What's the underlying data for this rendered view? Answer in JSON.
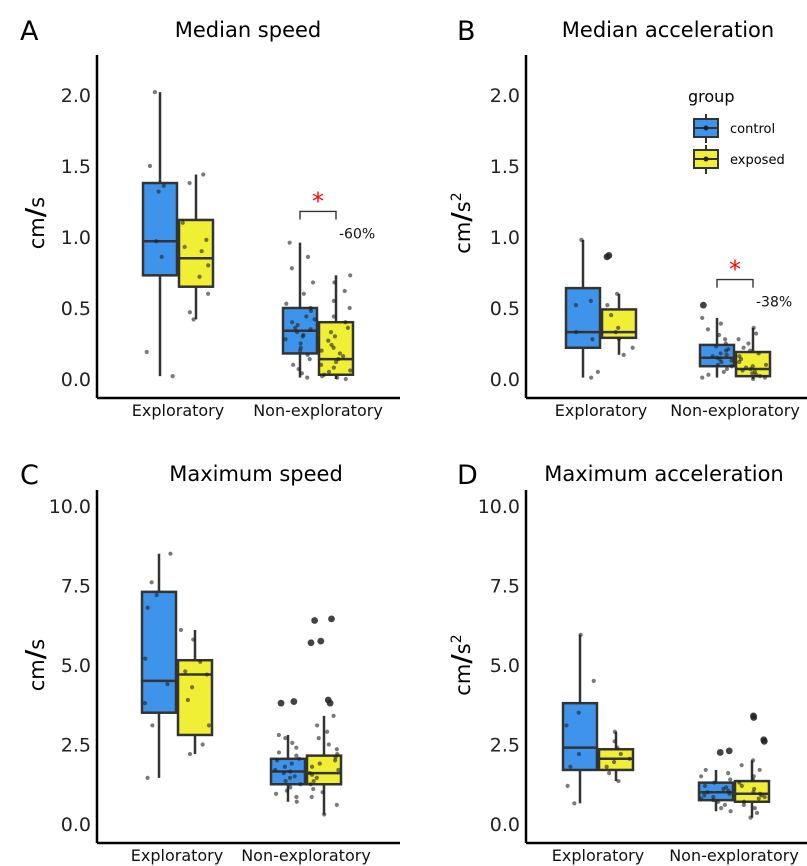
{
  "colors": {
    "control": "#3d94ea",
    "exposed": "#f0ee35",
    "outline": "#333333",
    "star": "#ff0000"
  },
  "legend": {
    "title": "group",
    "items": [
      {
        "name": "control",
        "color": "#3d94ea"
      },
      {
        "name": "exposed",
        "color": "#f0ee35"
      }
    ]
  },
  "chart_data": [
    {
      "type": "box",
      "panel": "A",
      "title": "Median speed",
      "unit": {
        "base": "cm",
        "den": "s",
        "exp": ""
      },
      "ylim": [
        0,
        2.25
      ],
      "yticks": [
        "0.0",
        "0.5",
        "1.0",
        "1.5",
        "2.0"
      ],
      "categories": [
        "Exploratory",
        "Non-exploratory"
      ],
      "series": [
        {
          "name": "control",
          "boxes": [
            {
              "min": 0.02,
              "q1": 0.73,
              "median": 0.97,
              "q3": 1.38,
              "max": 2.02,
              "points": [
                0.02,
                0.19,
                0.86,
                0.97,
                1.32,
                1.36,
                1.5,
                2.02
              ]
            },
            {
              "min": 0.01,
              "q1": 0.18,
              "median": 0.34,
              "q3": 0.5,
              "max": 0.96,
              "points": [
                0.01,
                0.04,
                0.07,
                0.1,
                0.14,
                0.17,
                0.2,
                0.22,
                0.25,
                0.28,
                0.3,
                0.31,
                0.33,
                0.35,
                0.36,
                0.38,
                0.4,
                0.42,
                0.44,
                0.48,
                0.5,
                0.53,
                0.6,
                0.68,
                0.78,
                0.86,
                0.96
              ]
            }
          ]
        },
        {
          "name": "exposed",
          "boxes": [
            {
              "min": 0.42,
              "q1": 0.65,
              "median": 0.85,
              "q3": 1.12,
              "max": 1.44,
              "points": [
                0.42,
                0.47,
                0.6,
                0.72,
                0.8,
                0.9,
                0.93,
                0.98,
                1.1,
                1.38,
                1.44
              ]
            },
            {
              "min": 0.0,
              "q1": 0.03,
              "median": 0.14,
              "q3": 0.4,
              "max": 0.73,
              "points": [
                0.0,
                0.01,
                0.02,
                0.03,
                0.05,
                0.06,
                0.08,
                0.1,
                0.12,
                0.14,
                0.16,
                0.18,
                0.2,
                0.22,
                0.24,
                0.27,
                0.3,
                0.33,
                0.36,
                0.4,
                0.44,
                0.5,
                0.55,
                0.62,
                0.68,
                0.73
              ]
            }
          ]
        }
      ],
      "annotation": {
        "star": "*",
        "percent": "-60%",
        "bracket_y": 1.18
      }
    },
    {
      "type": "box",
      "panel": "B",
      "title": "Median acceleration",
      "unit": {
        "base": "cm",
        "den": "s",
        "exp": "2"
      },
      "ylim": [
        0,
        2.25
      ],
      "yticks": [
        "0.0",
        "0.5",
        "1.0",
        "1.5",
        "2.0"
      ],
      "categories": [
        "Exploratory",
        "Non-exploratory"
      ],
      "series": [
        {
          "name": "control",
          "boxes": [
            {
              "min": 0.01,
              "q1": 0.22,
              "median": 0.33,
              "q3": 0.64,
              "max": 0.98,
              "points": [
                0.01,
                0.05,
                0.28,
                0.33,
                0.52,
                0.55,
                0.98
              ]
            },
            {
              "min": 0.01,
              "q1": 0.09,
              "median": 0.15,
              "q3": 0.24,
              "max": 0.43,
              "points": [
                0.01,
                0.03,
                0.05,
                0.07,
                0.09,
                0.1,
                0.12,
                0.13,
                0.14,
                0.15,
                0.16,
                0.17,
                0.18,
                0.2,
                0.21,
                0.23,
                0.25,
                0.28,
                0.31,
                0.35,
                0.39,
                0.43,
                0.52
              ]
            }
          ]
        },
        {
          "name": "exposed",
          "boxes": [
            {
              "min": 0.17,
              "q1": 0.29,
              "median": 0.33,
              "q3": 0.49,
              "max": 0.6,
              "points": [
                0.17,
                0.22,
                0.28,
                0.33,
                0.36,
                0.45,
                0.52,
                0.6,
                0.86,
                0.87
              ]
            },
            {
              "min": 0.0,
              "q1": 0.02,
              "median": 0.07,
              "q3": 0.19,
              "max": 0.36,
              "points": [
                0.0,
                0.01,
                0.02,
                0.03,
                0.04,
                0.05,
                0.06,
                0.07,
                0.08,
                0.09,
                0.1,
                0.12,
                0.14,
                0.16,
                0.18,
                0.2,
                0.22,
                0.25,
                0.28,
                0.32,
                0.36
              ]
            }
          ]
        }
      ],
      "annotation": {
        "star": "*",
        "percent": "-38%",
        "bracket_y": 0.7
      }
    },
    {
      "type": "box",
      "panel": "C",
      "title": "Maximum speed",
      "unit": {
        "base": "cm",
        "den": "s",
        "exp": ""
      },
      "ylim": [
        0,
        10.5
      ],
      "yticks": [
        "0.0",
        "2.5",
        "5.0",
        "7.5",
        "10.0"
      ],
      "categories": [
        "Exploratory",
        "Non-exploratory"
      ],
      "series": [
        {
          "name": "control",
          "boxes": [
            {
              "min": 1.45,
              "q1": 3.5,
              "median": 4.5,
              "q3": 7.3,
              "max": 8.5,
              "points": [
                1.45,
                3.1,
                3.8,
                4.4,
                5.2,
                6.8,
                7.2,
                7.6,
                8.5
              ]
            },
            {
              "min": 0.7,
              "q1": 1.25,
              "median": 1.65,
              "q3": 2.05,
              "max": 2.8,
              "points": [
                0.7,
                0.85,
                0.95,
                1.05,
                1.15,
                1.25,
                1.35,
                1.45,
                1.5,
                1.6,
                1.65,
                1.7,
                1.8,
                1.9,
                2.0,
                2.05,
                2.15,
                2.25,
                2.4,
                2.55,
                2.7,
                2.8,
                3.8,
                3.85
              ]
            }
          ]
        },
        {
          "name": "exposed",
          "boxes": [
            {
              "min": 2.2,
              "q1": 2.8,
              "median": 4.7,
              "q3": 5.15,
              "max": 6.1,
              "points": [
                2.2,
                2.5,
                3.1,
                3.9,
                4.3,
                4.7,
                4.8,
                5.1,
                5.8,
                6.1
              ]
            },
            {
              "min": 0.3,
              "q1": 1.25,
              "median": 1.6,
              "q3": 2.15,
              "max": 3.4,
              "points": [
                0.3,
                0.6,
                0.85,
                1.0,
                1.1,
                1.25,
                1.35,
                1.45,
                1.55,
                1.6,
                1.7,
                1.8,
                1.9,
                2.0,
                2.1,
                2.2,
                2.35,
                2.5,
                2.7,
                2.9,
                3.1,
                3.4,
                3.8,
                3.9,
                5.7,
                5.75,
                6.4,
                6.45
              ]
            }
          ]
        }
      ]
    },
    {
      "type": "box",
      "panel": "D",
      "title": "Maximum acceleration",
      "unit": {
        "base": "cm",
        "den": "s",
        "exp": "2"
      },
      "ylim": [
        0,
        10.5
      ],
      "yticks": [
        "0.0",
        "2.5",
        "5.0",
        "7.5",
        "10.0"
      ],
      "categories": [
        "Exploratory",
        "Non-exploratory"
      ],
      "series": [
        {
          "name": "control",
          "boxes": [
            {
              "min": 0.65,
              "q1": 1.7,
              "median": 2.4,
              "q3": 3.8,
              "max": 5.95,
              "points": [
                0.65,
                1.2,
                1.8,
                2.2,
                3.1,
                3.5,
                4.5,
                5.95
              ]
            },
            {
              "min": 0.4,
              "q1": 0.75,
              "median": 1.0,
              "q3": 1.3,
              "max": 1.7,
              "points": [
                0.4,
                0.5,
                0.6,
                0.7,
                0.75,
                0.8,
                0.85,
                0.9,
                0.95,
                1.0,
                1.05,
                1.1,
                1.15,
                1.2,
                1.3,
                1.4,
                1.5,
                1.6,
                1.7,
                2.25,
                2.3
              ]
            }
          ]
        },
        {
          "name": "exposed",
          "boxes": [
            {
              "min": 1.35,
              "q1": 1.7,
              "median": 2.05,
              "q3": 2.35,
              "max": 2.9,
              "points": [
                1.35,
                1.6,
                1.8,
                1.95,
                2.05,
                2.2,
                2.4,
                2.6,
                2.9
              ]
            },
            {
              "min": 0.2,
              "q1": 0.7,
              "median": 0.95,
              "q3": 1.35,
              "max": 2.0,
              "points": [
                0.2,
                0.35,
                0.5,
                0.6,
                0.7,
                0.8,
                0.85,
                0.9,
                0.95,
                1.0,
                1.1,
                1.2,
                1.3,
                1.4,
                1.5,
                1.7,
                1.85,
                2.0,
                2.6,
                2.65,
                3.35,
                3.4
              ]
            }
          ]
        }
      ]
    }
  ]
}
